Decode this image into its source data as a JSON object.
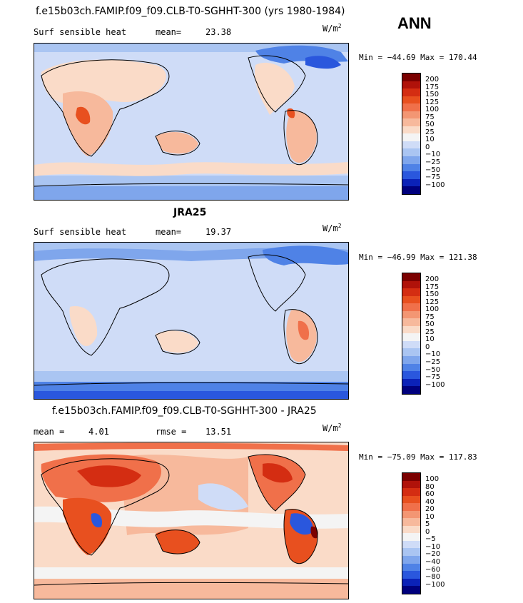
{
  "season": "ANN",
  "panels": [
    {
      "title": "f.e15b03ch.FAMIP.f09_f09.CLB-T0-SGHHT-300 (yrs 1980-1984)",
      "left_label": "Surf sensible heat",
      "stat_label": "mean=",
      "stat_value": "23.38",
      "units": "W/m",
      "units_exp": "2",
      "minmax": "Min = −44.69 Max = 170.44",
      "levels": [
        "200",
        "175",
        "150",
        "125",
        "100",
        "75",
        "50",
        "25",
        "10",
        "0",
        "−10",
        "−25",
        "−50",
        "−75",
        "−100"
      ]
    },
    {
      "title": "JRA25",
      "left_label": "Surf sensible heat",
      "stat_label": "mean=",
      "stat_value": "19.37",
      "units": "W/m",
      "units_exp": "2",
      "minmax": "Min = −46.99 Max = 121.38",
      "levels": [
        "200",
        "175",
        "150",
        "125",
        "100",
        "75",
        "50",
        "25",
        "10",
        "0",
        "−10",
        "−25",
        "−50",
        "−75",
        "−100"
      ]
    },
    {
      "title": "f.e15b03ch.FAMIP.f09_f09.CLB-T0-SGHHT-300 - JRA25",
      "left_label": "mean =",
      "stat_label": "rmse =",
      "left_value": "4.01",
      "stat_value": "13.51",
      "units": "W/m",
      "units_exp": "2",
      "minmax": "Min = −75.09 Max = 117.83",
      "levels": [
        "100",
        "80",
        "60",
        "40",
        "20",
        "10",
        "5",
        "0",
        "−5",
        "−10",
        "−20",
        "−40",
        "−60",
        "−80",
        "−100"
      ]
    }
  ],
  "colors": {
    "cbar": [
      "#7b0000",
      "#b0120a",
      "#d42d12",
      "#e8501f",
      "#f0704a",
      "#f39673",
      "#f7b99c",
      "#fadbc8",
      "#f4f4f4",
      "#cfdcf7",
      "#aac5f2",
      "#7fa6ec",
      "#4f82e6",
      "#2a57dd",
      "#0b22b8",
      "#00007d"
    ],
    "ocean": "#cfdcf7",
    "land_warm": "#f7b99c",
    "land_hot": "#e8501f",
    "cool": "#7fa6ec",
    "cold": "#4f82e6"
  }
}
